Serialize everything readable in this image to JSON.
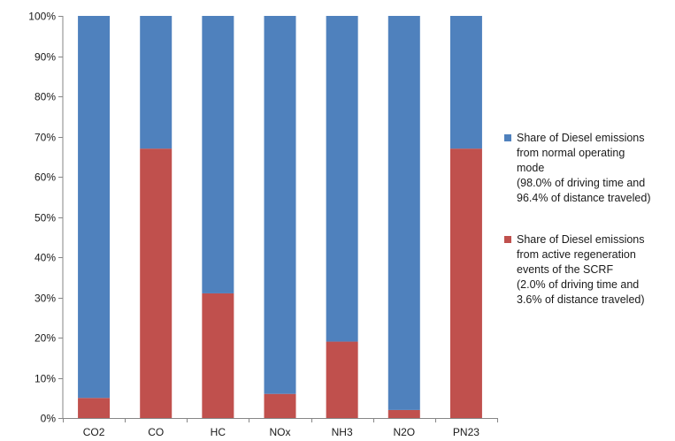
{
  "chart_data": {
    "type": "bar",
    "stacked": true,
    "normalized": true,
    "categories": [
      "CO2",
      "CO",
      "HC",
      "NOx",
      "NH3",
      "N2O",
      "PN23"
    ],
    "series": [
      {
        "name_lines": [
          "Share of Diesel emissions",
          "from active regeneration",
          "events of the SCRF",
          "(2.0% of driving time and",
          "3.6% of distance traveled)"
        ],
        "color": "#c0504d",
        "values": [
          5,
          67,
          31,
          6,
          19,
          2,
          67
        ]
      },
      {
        "name_lines": [
          "Share of Diesel emissions",
          "from normal operating",
          "mode",
          "(98.0% of driving time and",
          "96.4% of distance traveled)"
        ],
        "color": "#4f81bd",
        "values": [
          95,
          33,
          69,
          94,
          81,
          98,
          33
        ]
      }
    ],
    "ylim": [
      0,
      100
    ],
    "yticks": [
      0,
      10,
      20,
      30,
      40,
      50,
      60,
      70,
      80,
      90,
      100
    ],
    "ytick_labels": [
      "0%",
      "10%",
      "20%",
      "30%",
      "40%",
      "50%",
      "60%",
      "70%",
      "80%",
      "90%",
      "100%"
    ],
    "legend_position": "right",
    "legend_order": [
      1,
      0
    ],
    "grid": false
  }
}
